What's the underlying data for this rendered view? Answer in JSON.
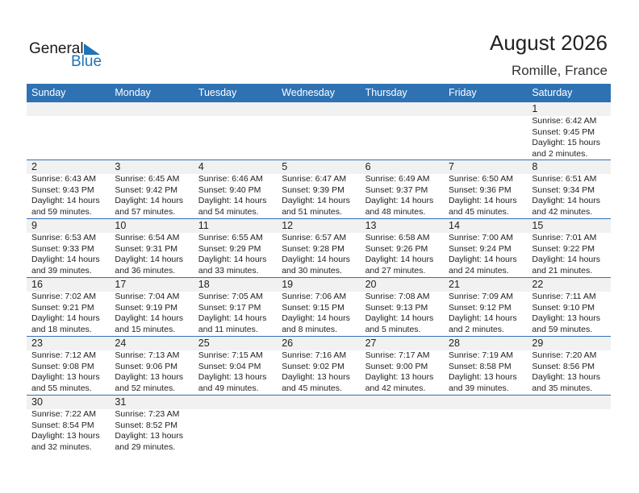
{
  "logo": {
    "line1": "General",
    "line2": "Blue"
  },
  "title": "August 2026",
  "location": "Romille, France",
  "weekdays": [
    "Sunday",
    "Monday",
    "Tuesday",
    "Wednesday",
    "Thursday",
    "Friday",
    "Saturday"
  ],
  "weeks": [
    [
      null,
      null,
      null,
      null,
      null,
      null,
      {
        "day": "1",
        "sunrise": "Sunrise: 6:42 AM",
        "sunset": "Sunset: 9:45 PM",
        "daylight1": "Daylight: 15 hours",
        "daylight2": "and 2 minutes."
      }
    ],
    [
      {
        "day": "2",
        "sunrise": "Sunrise: 6:43 AM",
        "sunset": "Sunset: 9:43 PM",
        "daylight1": "Daylight: 14 hours",
        "daylight2": "and 59 minutes."
      },
      {
        "day": "3",
        "sunrise": "Sunrise: 6:45 AM",
        "sunset": "Sunset: 9:42 PM",
        "daylight1": "Daylight: 14 hours",
        "daylight2": "and 57 minutes."
      },
      {
        "day": "4",
        "sunrise": "Sunrise: 6:46 AM",
        "sunset": "Sunset: 9:40 PM",
        "daylight1": "Daylight: 14 hours",
        "daylight2": "and 54 minutes."
      },
      {
        "day": "5",
        "sunrise": "Sunrise: 6:47 AM",
        "sunset": "Sunset: 9:39 PM",
        "daylight1": "Daylight: 14 hours",
        "daylight2": "and 51 minutes."
      },
      {
        "day": "6",
        "sunrise": "Sunrise: 6:49 AM",
        "sunset": "Sunset: 9:37 PM",
        "daylight1": "Daylight: 14 hours",
        "daylight2": "and 48 minutes."
      },
      {
        "day": "7",
        "sunrise": "Sunrise: 6:50 AM",
        "sunset": "Sunset: 9:36 PM",
        "daylight1": "Daylight: 14 hours",
        "daylight2": "and 45 minutes."
      },
      {
        "day": "8",
        "sunrise": "Sunrise: 6:51 AM",
        "sunset": "Sunset: 9:34 PM",
        "daylight1": "Daylight: 14 hours",
        "daylight2": "and 42 minutes."
      }
    ],
    [
      {
        "day": "9",
        "sunrise": "Sunrise: 6:53 AM",
        "sunset": "Sunset: 9:33 PM",
        "daylight1": "Daylight: 14 hours",
        "daylight2": "and 39 minutes."
      },
      {
        "day": "10",
        "sunrise": "Sunrise: 6:54 AM",
        "sunset": "Sunset: 9:31 PM",
        "daylight1": "Daylight: 14 hours",
        "daylight2": "and 36 minutes."
      },
      {
        "day": "11",
        "sunrise": "Sunrise: 6:55 AM",
        "sunset": "Sunset: 9:29 PM",
        "daylight1": "Daylight: 14 hours",
        "daylight2": "and 33 minutes."
      },
      {
        "day": "12",
        "sunrise": "Sunrise: 6:57 AM",
        "sunset": "Sunset: 9:28 PM",
        "daylight1": "Daylight: 14 hours",
        "daylight2": "and 30 minutes."
      },
      {
        "day": "13",
        "sunrise": "Sunrise: 6:58 AM",
        "sunset": "Sunset: 9:26 PM",
        "daylight1": "Daylight: 14 hours",
        "daylight2": "and 27 minutes."
      },
      {
        "day": "14",
        "sunrise": "Sunrise: 7:00 AM",
        "sunset": "Sunset: 9:24 PM",
        "daylight1": "Daylight: 14 hours",
        "daylight2": "and 24 minutes."
      },
      {
        "day": "15",
        "sunrise": "Sunrise: 7:01 AM",
        "sunset": "Sunset: 9:22 PM",
        "daylight1": "Daylight: 14 hours",
        "daylight2": "and 21 minutes."
      }
    ],
    [
      {
        "day": "16",
        "sunrise": "Sunrise: 7:02 AM",
        "sunset": "Sunset: 9:21 PM",
        "daylight1": "Daylight: 14 hours",
        "daylight2": "and 18 minutes."
      },
      {
        "day": "17",
        "sunrise": "Sunrise: 7:04 AM",
        "sunset": "Sunset: 9:19 PM",
        "daylight1": "Daylight: 14 hours",
        "daylight2": "and 15 minutes."
      },
      {
        "day": "18",
        "sunrise": "Sunrise: 7:05 AM",
        "sunset": "Sunset: 9:17 PM",
        "daylight1": "Daylight: 14 hours",
        "daylight2": "and 11 minutes."
      },
      {
        "day": "19",
        "sunrise": "Sunrise: 7:06 AM",
        "sunset": "Sunset: 9:15 PM",
        "daylight1": "Daylight: 14 hours",
        "daylight2": "and 8 minutes."
      },
      {
        "day": "20",
        "sunrise": "Sunrise: 7:08 AM",
        "sunset": "Sunset: 9:13 PM",
        "daylight1": "Daylight: 14 hours",
        "daylight2": "and 5 minutes."
      },
      {
        "day": "21",
        "sunrise": "Sunrise: 7:09 AM",
        "sunset": "Sunset: 9:12 PM",
        "daylight1": "Daylight: 14 hours",
        "daylight2": "and 2 minutes."
      },
      {
        "day": "22",
        "sunrise": "Sunrise: 7:11 AM",
        "sunset": "Sunset: 9:10 PM",
        "daylight1": "Daylight: 13 hours",
        "daylight2": "and 59 minutes."
      }
    ],
    [
      {
        "day": "23",
        "sunrise": "Sunrise: 7:12 AM",
        "sunset": "Sunset: 9:08 PM",
        "daylight1": "Daylight: 13 hours",
        "daylight2": "and 55 minutes."
      },
      {
        "day": "24",
        "sunrise": "Sunrise: 7:13 AM",
        "sunset": "Sunset: 9:06 PM",
        "daylight1": "Daylight: 13 hours",
        "daylight2": "and 52 minutes."
      },
      {
        "day": "25",
        "sunrise": "Sunrise: 7:15 AM",
        "sunset": "Sunset: 9:04 PM",
        "daylight1": "Daylight: 13 hours",
        "daylight2": "and 49 minutes."
      },
      {
        "day": "26",
        "sunrise": "Sunrise: 7:16 AM",
        "sunset": "Sunset: 9:02 PM",
        "daylight1": "Daylight: 13 hours",
        "daylight2": "and 45 minutes."
      },
      {
        "day": "27",
        "sunrise": "Sunrise: 7:17 AM",
        "sunset": "Sunset: 9:00 PM",
        "daylight1": "Daylight: 13 hours",
        "daylight2": "and 42 minutes."
      },
      {
        "day": "28",
        "sunrise": "Sunrise: 7:19 AM",
        "sunset": "Sunset: 8:58 PM",
        "daylight1": "Daylight: 13 hours",
        "daylight2": "and 39 minutes."
      },
      {
        "day": "29",
        "sunrise": "Sunrise: 7:20 AM",
        "sunset": "Sunset: 8:56 PM",
        "daylight1": "Daylight: 13 hours",
        "daylight2": "and 35 minutes."
      }
    ],
    [
      {
        "day": "30",
        "sunrise": "Sunrise: 7:22 AM",
        "sunset": "Sunset: 8:54 PM",
        "daylight1": "Daylight: 13 hours",
        "daylight2": "and 32 minutes."
      },
      {
        "day": "31",
        "sunrise": "Sunrise: 7:23 AM",
        "sunset": "Sunset: 8:52 PM",
        "daylight1": "Daylight: 13 hours",
        "daylight2": "and 29 minutes."
      },
      null,
      null,
      null,
      null,
      null
    ]
  ]
}
